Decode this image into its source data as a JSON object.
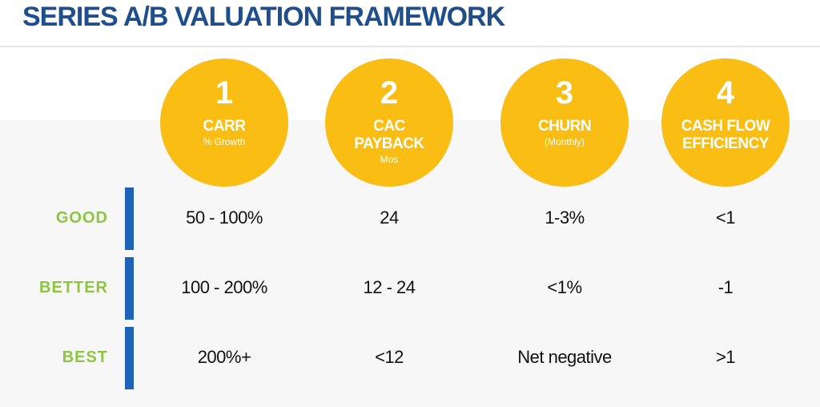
{
  "title": "SERIES A/B VALUATION FRAMEWORK",
  "columns": [
    {
      "number": "1",
      "heading": "CARR",
      "heading2": "",
      "sub": "% Growth"
    },
    {
      "number": "2",
      "heading": "CAC",
      "heading2": "PAYBACK",
      "sub": "Mos"
    },
    {
      "number": "3",
      "heading": "CHURN",
      "heading2": "",
      "sub": "(Monthly)"
    },
    {
      "number": "4",
      "heading": "CASH FLOW",
      "heading2": "EFFICIENCY",
      "sub": ""
    }
  ],
  "rows": [
    {
      "label": "GOOD",
      "values": [
        "50 - 100%",
        "24",
        "1-3%",
        "<1"
      ]
    },
    {
      "label": "BETTER",
      "values": [
        "100 - 200%",
        "12 - 24",
        "<1%",
        "-1"
      ]
    },
    {
      "label": "BEST",
      "values": [
        "200%+",
        "<12",
        "Net negative",
        ">1"
      ]
    }
  ],
  "colors": {
    "title": "#1f4e8c",
    "circle": "#f9bd13",
    "row_label": "#8cc63f",
    "divider_bar": "#1f63b8"
  }
}
